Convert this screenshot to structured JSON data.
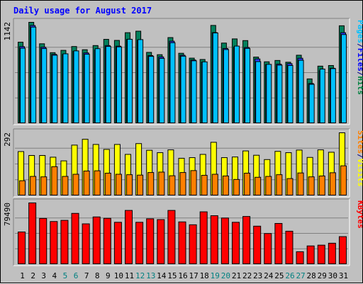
{
  "chart_data": {
    "type": "bar",
    "title": "Daily usage for August 2017",
    "categories": [
      "1",
      "2",
      "3",
      "4",
      "5",
      "6",
      "7",
      "8",
      "9",
      "10",
      "11",
      "12",
      "13",
      "14",
      "15",
      "16",
      "17",
      "18",
      "19",
      "20",
      "21",
      "22",
      "23",
      "24",
      "25",
      "26",
      "27",
      "28",
      "29",
      "30",
      "31"
    ],
    "weekend_days": [
      "5",
      "6",
      "12",
      "13",
      "19",
      "20",
      "26",
      "27"
    ],
    "panels": [
      {
        "id": "pages-files-hits",
        "max_label": "1142",
        "ymax": 1142,
        "right_label": [
          {
            "text": "Pages",
            "color": "#00c0ff"
          },
          {
            "text": "/",
            "color": "#000080"
          },
          {
            "text": "Files",
            "color": "#0000ff"
          },
          {
            "text": "/",
            "color": "#000080"
          },
          {
            "text": "Hits",
            "color": "#008040"
          }
        ],
        "series": [
          {
            "name": "Hits",
            "color": "#00805c",
            "values": [
              918,
              1142,
              900,
              800,
              826,
              869,
              833,
              880,
              950,
              938,
              1025,
              1042,
              803,
              777,
              970,
              793,
              738,
              723,
              1107,
              908,
              955,
              936,
              750,
              697,
              712,
              692,
              771,
              504,
              648,
              655,
              1103
            ]
          },
          {
            "name": "Files",
            "color": "#2a3cff",
            "values": [
              868,
              1106,
              861,
              781,
              780,
              815,
              797,
              829,
              880,
              873,
              950,
              942,
              767,
              752,
              929,
              771,
              717,
              694,
              1026,
              847,
              864,
              858,
              729,
              666,
              670,
              676,
              737,
              452,
              596,
              624,
              1025
            ]
          },
          {
            "name": "Pages",
            "color": "#00c0ff",
            "values": [
              850,
              1088,
              846,
              771,
              787,
              820,
              782,
              845,
              870,
              865,
              951,
              947,
              758,
              735,
              912,
              760,
              708,
              696,
              1022,
              835,
              874,
              848,
              699,
              668,
              659,
              655,
              714,
              443,
              615,
              620,
              1004
            ]
          }
        ]
      },
      {
        "id": "sites-visits",
        "max_label": "292",
        "ymax": 292,
        "right_label": [
          {
            "text": "Sites",
            "color": "#ff8000"
          },
          {
            "text": "/",
            "color": "#000080"
          },
          {
            "text": "Visits",
            "color": "#ffff00"
          }
        ],
        "series": [
          {
            "name": "Visits",
            "color": "#ffff00",
            "values": [
              205,
              187,
              187,
              179,
              162,
              235,
              262,
              238,
              215,
              238,
              192,
              242,
              211,
              200,
              213,
              174,
              177,
              192,
              248,
              177,
              180,
              208,
              188,
              168,
              206,
              200,
              212,
              178,
              213,
              202,
              292
            ]
          },
          {
            "name": "Sites",
            "color": "#ff8000",
            "values": [
              70,
              90,
              88,
              135,
              90,
              100,
              115,
              116,
              105,
              100,
              98,
              96,
              108,
              110,
              93,
              108,
              117,
              95,
              100,
              92,
              76,
              105,
              86,
              90,
              98,
              80,
              106,
              88,
              92,
              107,
              139
            ]
          }
        ]
      },
      {
        "id": "kbytes",
        "max_label": "79490",
        "ymax": 79490,
        "right_label": [
          {
            "text": "KBytes",
            "color": "#ff0000"
          }
        ],
        "series": [
          {
            "name": "KBytes",
            "color": "#ff0000",
            "values": [
              42000,
              79490,
              59500,
              55500,
              57000,
              66000,
              52500,
              61400,
              59600,
              54500,
              69800,
              54500,
              59000,
              58000,
              69800,
              55000,
              51300,
              68000,
              63000,
              60000,
              54500,
              62000,
              49500,
              40000,
              53000,
              43000,
              16500,
              24000,
              25000,
              27500,
              36000
            ]
          }
        ]
      }
    ]
  }
}
